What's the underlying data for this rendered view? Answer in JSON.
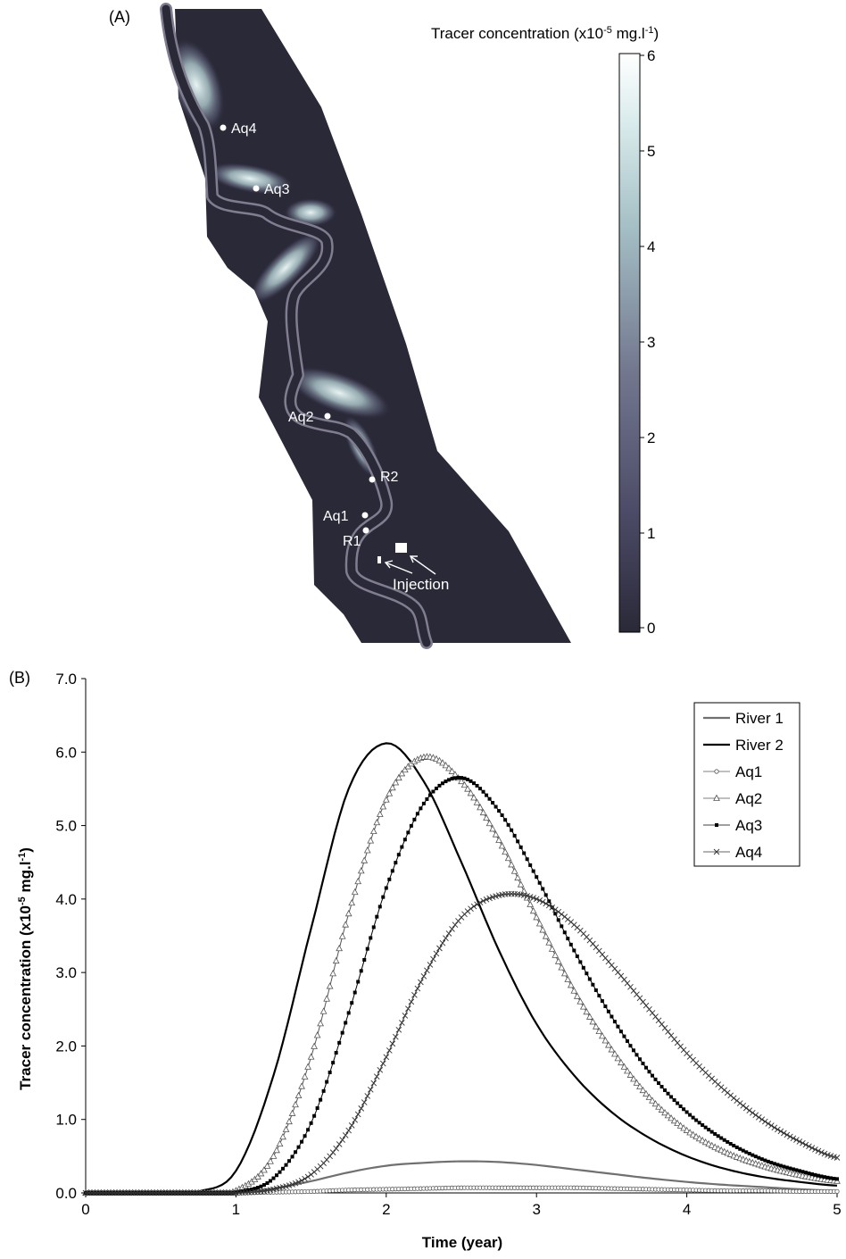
{
  "panel_a": {
    "label": "(A)",
    "colorbar_title_main": "Tracer concentration (x10",
    "colorbar_title_exp": "-5",
    "colorbar_title_unit": " mg.l",
    "colorbar_title_unit_exp": "-1",
    "colorbar_title_close": ")",
    "colorbar_ticks": [
      "6",
      "5",
      "4",
      "3",
      "2",
      "1",
      "0"
    ],
    "colors": {
      "background": "#2a2938",
      "river_line": "#7f7d8f",
      "max": "#ffffff"
    },
    "points": [
      {
        "id": "aq4",
        "label": "Aq4"
      },
      {
        "id": "aq3",
        "label": "Aq3"
      },
      {
        "id": "aq2",
        "label": "Aq2"
      },
      {
        "id": "r2",
        "label": "R2"
      },
      {
        "id": "aq1",
        "label": "Aq1"
      },
      {
        "id": "r1",
        "label": "R1"
      }
    ],
    "injection_label": "Injection"
  },
  "panel_b": {
    "label": "(B)",
    "ylabel_main": "Tracer concentration (x10",
    "ylabel_exp": "-5",
    "ylabel_unit": " mg.l",
    "ylabel_unit_exp": "-1",
    "ylabel_close": ")",
    "xlabel": "Time (year)"
  },
  "chart_data": {
    "type": "line",
    "xlabel": "Time (year)",
    "ylabel": "Tracer concentration (x10-5 mg.l-1)",
    "xlim": [
      0,
      5
    ],
    "ylim": [
      0,
      7
    ],
    "x_ticks": [
      "0",
      "1",
      "2",
      "3",
      "4",
      "5"
    ],
    "y_ticks": [
      "0.0",
      "1.0",
      "2.0",
      "3.0",
      "4.0",
      "5.0",
      "6.0",
      "7.0"
    ],
    "legend_position": "top-right",
    "grid": false,
    "x": [
      0,
      0.25,
      0.5,
      0.75,
      1.0,
      1.25,
      1.5,
      1.75,
      2.0,
      2.25,
      2.5,
      2.75,
      3.0,
      3.25,
      3.5,
      3.75,
      4.0,
      4.25,
      4.5,
      4.75,
      5.0
    ],
    "series": [
      {
        "name": "River 1",
        "marker": "none",
        "color": "#707070",
        "width": 2.2,
        "values": [
          0,
          0,
          0,
          0,
          0.01,
          0.06,
          0.16,
          0.28,
          0.37,
          0.41,
          0.43,
          0.42,
          0.38,
          0.32,
          0.26,
          0.2,
          0.15,
          0.11,
          0.08,
          0.05,
          0.03
        ]
      },
      {
        "name": "River 2",
        "marker": "none",
        "color": "#000000",
        "width": 2.2,
        "values": [
          0,
          0,
          0,
          0.02,
          0.3,
          1.6,
          3.6,
          5.5,
          6.12,
          5.6,
          4.5,
          3.3,
          2.3,
          1.6,
          1.1,
          0.75,
          0.5,
          0.33,
          0.22,
          0.15,
          0.1
        ]
      },
      {
        "name": "Aq1",
        "marker": "circle",
        "color": "#555555",
        "width": 1,
        "values": [
          0,
          0,
          0,
          0,
          0,
          0.01,
          0.02,
          0.04,
          0.05,
          0.06,
          0.07,
          0.07,
          0.07,
          0.07,
          0.06,
          0.05,
          0.04,
          0.03,
          0.03,
          0.02,
          0.02
        ]
      },
      {
        "name": "Aq2",
        "marker": "triangle",
        "color": "#555555",
        "width": 1,
        "values": [
          0,
          0,
          0,
          0,
          0.03,
          0.5,
          1.85,
          3.8,
          5.35,
          5.93,
          5.6,
          4.8,
          3.75,
          2.75,
          1.95,
          1.3,
          0.85,
          0.56,
          0.37,
          0.24,
          0.16
        ]
      },
      {
        "name": "Aq3",
        "marker": "square",
        "color": "#000000",
        "width": 1,
        "values": [
          0,
          0,
          0,
          0,
          0.01,
          0.2,
          0.95,
          2.45,
          4.15,
          5.3,
          5.65,
          5.2,
          4.3,
          3.3,
          2.4,
          1.65,
          1.1,
          0.72,
          0.46,
          0.3,
          0.19
        ]
      },
      {
        "name": "Aq4",
        "marker": "x",
        "color": "#333333",
        "width": 1,
        "values": [
          0,
          0,
          0,
          0,
          0,
          0.05,
          0.25,
          0.85,
          1.85,
          2.95,
          3.75,
          4.05,
          4.0,
          3.65,
          3.1,
          2.5,
          1.9,
          1.4,
          1.0,
          0.7,
          0.48
        ]
      }
    ]
  }
}
